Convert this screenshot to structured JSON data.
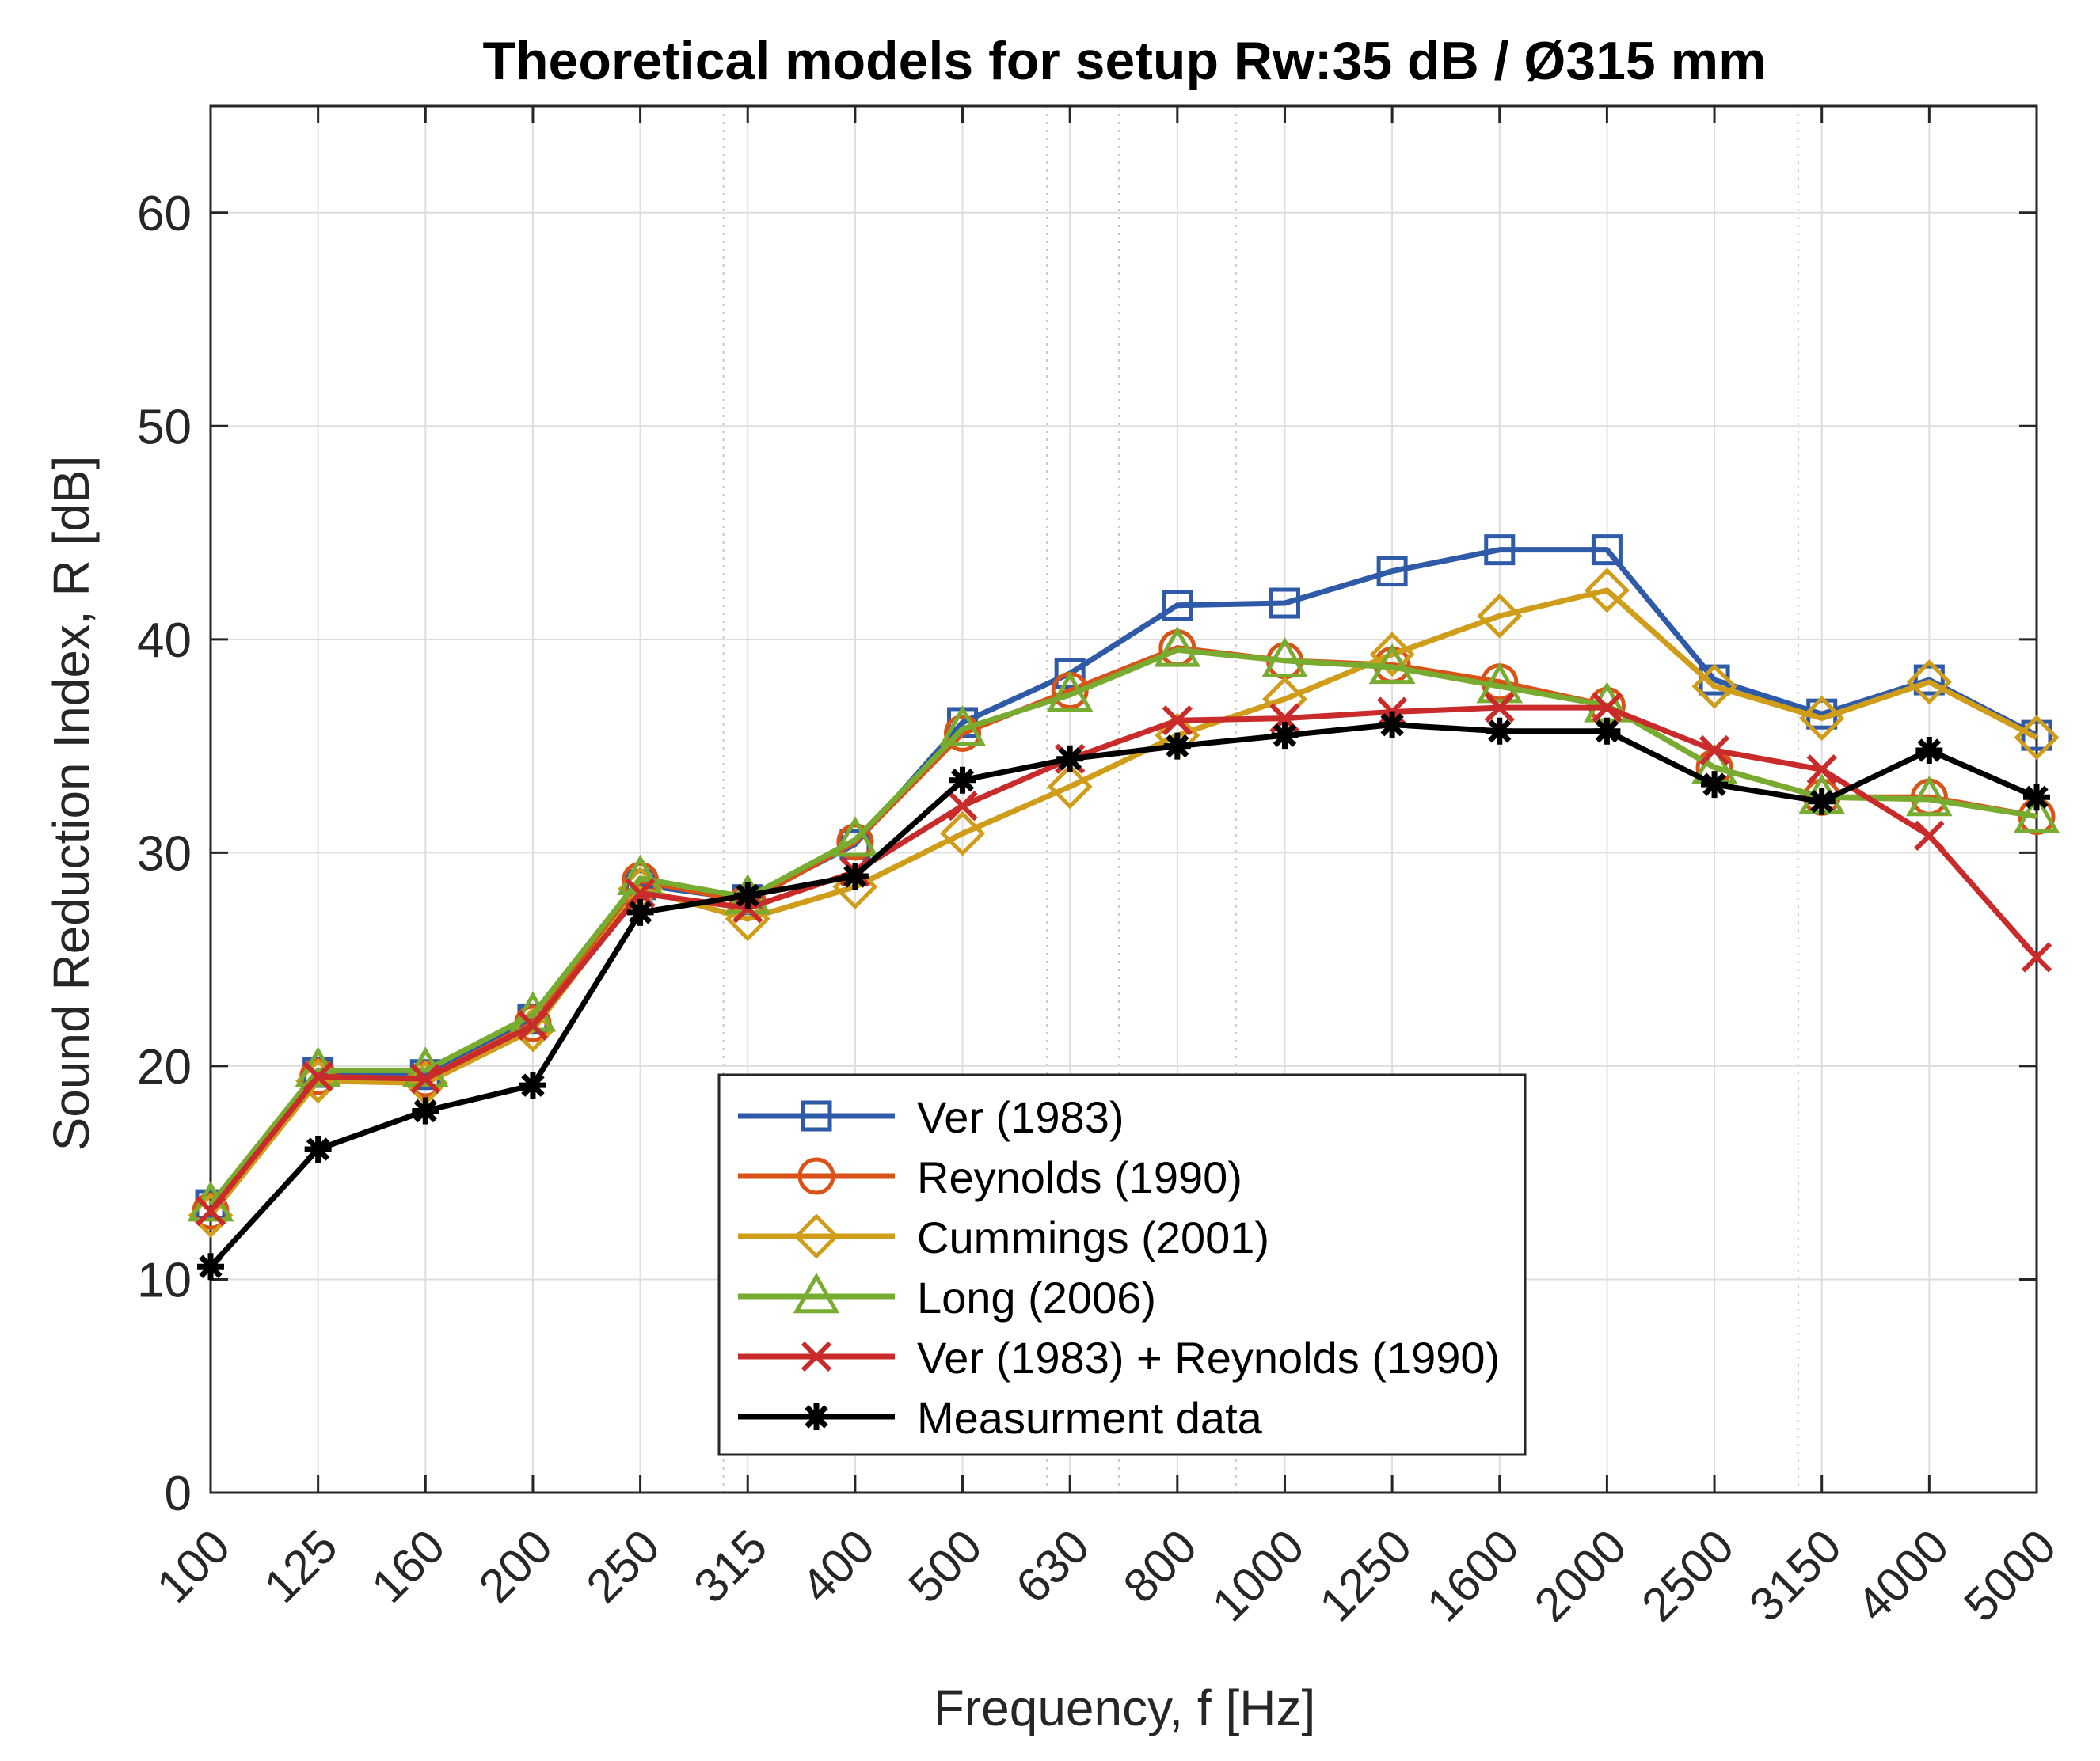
{
  "chart_data": {
    "type": "line",
    "title": "Theoretical models for setup Rw:35 dB / Ø315 mm",
    "xlabel": "Frequency, f [Hz]",
    "ylabel": "Sound Reduction Index, R [dB]",
    "categories": [
      "100",
      "125",
      "160",
      "200",
      "250",
      "315",
      "400",
      "500",
      "630",
      "800",
      "1000",
      "1250",
      "1600",
      "2000",
      "2500",
      "3150",
      "4000",
      "5000"
    ],
    "ylim": [
      0,
      65
    ],
    "yticks": [
      0,
      10,
      20,
      30,
      40,
      50,
      60
    ],
    "grid": true,
    "legend_position": "bottom-center",
    "series": [
      {
        "name": "Ver (1983)",
        "color": "#2e5aa8",
        "marker": "square",
        "values": [
          13.5,
          19.7,
          19.6,
          22.2,
          28.5,
          27.8,
          30.4,
          36.1,
          38.4,
          41.6,
          41.7,
          43.2,
          44.2,
          44.2,
          38.1,
          36.5,
          38.1,
          35.5
        ]
      },
      {
        "name": "Reynolds (1990)",
        "color": "#d95319",
        "marker": "circle",
        "values": [
          13.2,
          19.5,
          19.4,
          22.0,
          28.7,
          27.7,
          30.5,
          35.6,
          37.6,
          39.6,
          39.0,
          38.8,
          38.0,
          36.9,
          34.0,
          32.6,
          32.6,
          31.7
        ]
      },
      {
        "name": "Cummings (2001)",
        "color": "#cf9d1a",
        "marker": "diamond",
        "values": [
          13.0,
          19.3,
          19.2,
          21.7,
          28.3,
          26.9,
          28.4,
          30.9,
          33.1,
          35.5,
          37.2,
          39.3,
          41.1,
          42.3,
          37.8,
          36.3,
          38.0,
          35.4
        ]
      },
      {
        "name": "Long (2006)",
        "color": "#77ac30",
        "marker": "triangle",
        "values": [
          13.5,
          19.8,
          19.8,
          22.4,
          28.8,
          27.9,
          30.6,
          35.8,
          37.4,
          39.5,
          39.0,
          38.7,
          37.8,
          36.9,
          34.0,
          32.6,
          32.5,
          31.7
        ]
      },
      {
        "name": "Ver (1983) + Reynolds (1990)",
        "color": "#c92a2a",
        "marker": "x",
        "values": [
          13.2,
          19.5,
          19.4,
          21.9,
          28.1,
          27.4,
          29.1,
          32.2,
          34.4,
          36.2,
          36.3,
          36.6,
          36.8,
          36.8,
          34.8,
          33.9,
          30.8,
          25.1
        ]
      },
      {
        "name": "Measurment data",
        "color": "#000000",
        "marker": "asterisk",
        "values": [
          10.6,
          16.1,
          17.9,
          19.1,
          27.2,
          28.0,
          28.9,
          33.4,
          34.4,
          35.0,
          35.5,
          36.0,
          35.7,
          35.7,
          33.2,
          32.4,
          34.8,
          32.6
        ]
      }
    ]
  }
}
